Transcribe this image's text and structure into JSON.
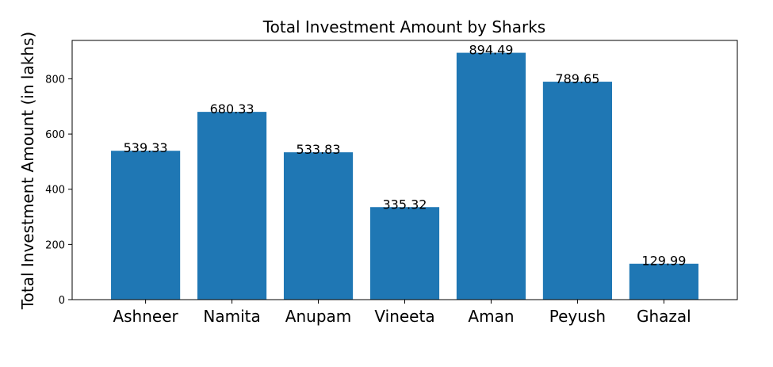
{
  "chart_data": {
    "type": "bar",
    "title": "Total Investment Amount by Sharks",
    "xlabel": "",
    "ylabel": "Total Investment Amount (in lakhs)",
    "categories": [
      "Ashneer",
      "Namita",
      "Anupam",
      "Vineeta",
      "Aman",
      "Peyush",
      "Ghazal"
    ],
    "values": [
      539.33,
      680.33,
      533.83,
      335.32,
      894.49,
      789.65,
      129.99
    ],
    "data_labels": [
      "539.33",
      "680.33",
      "533.83",
      "335.32",
      "894.49",
      "789.65",
      "129.99"
    ],
    "ylim": [
      0,
      939.2
    ],
    "yticks": [
      0,
      200,
      400,
      600,
      800
    ],
    "ytick_labels": [
      "0",
      "200",
      "400",
      "600",
      "800"
    ],
    "bar_color": "#1f77b4",
    "grid": false
  }
}
